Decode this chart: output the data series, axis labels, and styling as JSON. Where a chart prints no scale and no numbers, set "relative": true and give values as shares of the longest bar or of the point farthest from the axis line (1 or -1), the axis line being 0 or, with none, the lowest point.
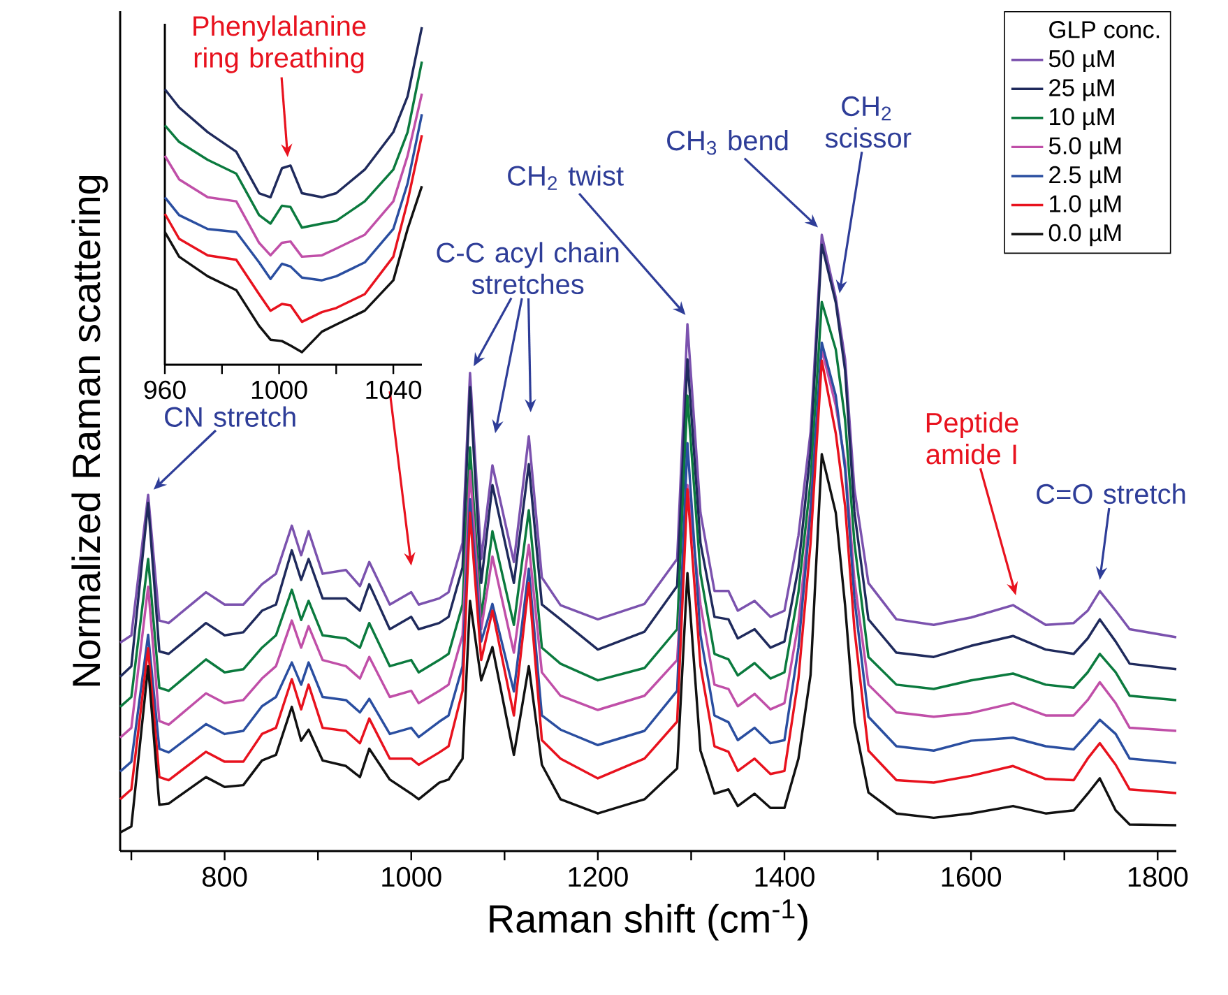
{
  "chart_data": [
    {
      "type": "line",
      "relative": true,
      "xlabel": "Raman shift (cm$^{-1}$)",
      "ylabel": "Normalized Raman scattering",
      "legend": "top right",
      "legend_title": "GLP conc.",
      "xlim": [
        688,
        1820
      ],
      "xticks": [
        {
          "value": 700,
          "label": null
        },
        800,
        {
          "value": 900,
          "label": null
        },
        1000,
        {
          "value": 1100,
          "label": null
        },
        1200,
        {
          "value": 1300,
          "label": null
        },
        1400,
        {
          "value": 1500,
          "label": null
        },
        1600,
        {
          "value": 1700,
          "label": null
        },
        1800
      ],
      "x": [
        688,
        700,
        718,
        730,
        740,
        780,
        800,
        820,
        840,
        855,
        872,
        882,
        890,
        905,
        930,
        945,
        955,
        977,
        1000,
        1008,
        1030,
        1040,
        1055,
        1063,
        1075,
        1087,
        1110,
        1126,
        1140,
        1160,
        1200,
        1250,
        1285,
        1296,
        1310,
        1325,
        1340,
        1350,
        1368,
        1385,
        1400,
        1415,
        1428,
        1440,
        1455,
        1465,
        1475,
        1490,
        1520,
        1560,
        1600,
        1645,
        1680,
        1710,
        1725,
        1738,
        1755,
        1770,
        1820
      ],
      "series": [
        {
          "name": "50 µM",
          "color": "#7b52ae",
          "values": [
            0.338,
            0.35,
            0.578,
            0.374,
            0.37,
            0.42,
            0.4,
            0.4,
            0.433,
            0.45,
            0.528,
            0.48,
            0.519,
            0.45,
            0.456,
            0.43,
            0.469,
            0.4,
            0.42,
            0.4,
            0.41,
            0.42,
            0.5,
            0.776,
            0.474,
            0.626,
            0.469,
            0.673,
            0.444,
            0.399,
            0.376,
            0.401,
            0.474,
            0.855,
            0.549,
            0.422,
            0.422,
            0.39,
            0.406,
            0.38,
            0.39,
            0.512,
            0.68,
            1.0,
            0.898,
            0.798,
            0.587,
            0.435,
            0.376,
            0.367,
            0.379,
            0.399,
            0.367,
            0.37,
            0.39,
            0.422,
            0.39,
            0.36,
            0.347
          ]
        },
        {
          "name": "25 µM",
          "color": "#1f2a5c",
          "values": [
            0.283,
            0.3,
            0.565,
            0.324,
            0.32,
            0.37,
            0.35,
            0.355,
            0.39,
            0.4,
            0.488,
            0.44,
            0.474,
            0.41,
            0.41,
            0.39,
            0.433,
            0.36,
            0.38,
            0.36,
            0.37,
            0.38,
            0.46,
            0.753,
            0.435,
            0.594,
            0.435,
            0.628,
            0.4,
            0.376,
            0.327,
            0.356,
            0.43,
            0.798,
            0.5,
            0.38,
            0.376,
            0.345,
            0.36,
            0.33,
            0.34,
            0.46,
            0.65,
            0.984,
            0.89,
            0.78,
            0.55,
            0.376,
            0.322,
            0.315,
            0.333,
            0.349,
            0.327,
            0.32,
            0.345,
            0.376,
            0.34,
            0.304,
            0.295
          ]
        },
        {
          "name": "10 µM",
          "color": "#0b7a3e",
          "values": [
            0.234,
            0.25,
            0.474,
            0.265,
            0.26,
            0.311,
            0.29,
            0.295,
            0.33,
            0.35,
            0.424,
            0.375,
            0.406,
            0.35,
            0.345,
            0.33,
            0.37,
            0.3,
            0.31,
            0.29,
            0.31,
            0.32,
            0.4,
            0.655,
            0.38,
            0.519,
            0.367,
            0.553,
            0.33,
            0.304,
            0.277,
            0.297,
            0.36,
            0.739,
            0.45,
            0.32,
            0.311,
            0.285,
            0.305,
            0.28,
            0.29,
            0.42,
            0.6,
            0.891,
            0.814,
            0.7,
            0.5,
            0.315,
            0.27,
            0.263,
            0.277,
            0.288,
            0.27,
            0.265,
            0.29,
            0.32,
            0.29,
            0.252,
            0.245
          ]
        },
        {
          "name": "5.0 µM",
          "color": "#c04fa8",
          "values": [
            0.184,
            0.2,
            0.429,
            0.211,
            0.205,
            0.256,
            0.24,
            0.245,
            0.28,
            0.3,
            0.374,
            0.33,
            0.365,
            0.31,
            0.3,
            0.28,
            0.315,
            0.25,
            0.26,
            0.24,
            0.26,
            0.27,
            0.35,
            0.617,
            0.36,
            0.478,
            0.322,
            0.497,
            0.29,
            0.252,
            0.229,
            0.252,
            0.31,
            0.594,
            0.4,
            0.27,
            0.263,
            0.235,
            0.255,
            0.23,
            0.24,
            0.37,
            0.56,
            0.814,
            0.723,
            0.63,
            0.44,
            0.27,
            0.225,
            0.218,
            0.224,
            0.24,
            0.22,
            0.22,
            0.245,
            0.274,
            0.24,
            0.2,
            0.195
          ]
        },
        {
          "name": "2.5 µM",
          "color": "#2a4ea0",
          "values": [
            0.129,
            0.145,
            0.351,
            0.166,
            0.16,
            0.206,
            0.19,
            0.195,
            0.235,
            0.25,
            0.306,
            0.27,
            0.306,
            0.25,
            0.245,
            0.225,
            0.247,
            0.19,
            0.2,
            0.185,
            0.21,
            0.22,
            0.3,
            0.571,
            0.34,
            0.401,
            0.259,
            0.458,
            0.22,
            0.197,
            0.172,
            0.195,
            0.26,
            0.662,
            0.35,
            0.22,
            0.209,
            0.18,
            0.2,
            0.175,
            0.18,
            0.33,
            0.55,
            0.825,
            0.739,
            0.62,
            0.41,
            0.218,
            0.17,
            0.163,
            0.179,
            0.184,
            0.17,
            0.165,
            0.19,
            0.213,
            0.19,
            0.15,
            0.143
          ]
        },
        {
          "name": "1.0 µM",
          "color": "#e8121e",
          "values": [
            0.084,
            0.1,
            0.329,
            0.12,
            0.115,
            0.161,
            0.145,
            0.145,
            0.19,
            0.2,
            0.279,
            0.23,
            0.27,
            0.2,
            0.195,
            0.175,
            0.215,
            0.15,
            0.15,
            0.14,
            0.16,
            0.17,
            0.26,
            0.549,
            0.31,
            0.39,
            0.22,
            0.435,
            0.18,
            0.15,
            0.118,
            0.15,
            0.21,
            0.587,
            0.3,
            0.17,
            0.161,
            0.13,
            0.15,
            0.125,
            0.13,
            0.28,
            0.5,
            0.796,
            0.678,
            0.56,
            0.36,
            0.163,
            0.115,
            0.111,
            0.122,
            0.138,
            0.117,
            0.115,
            0.15,
            0.175,
            0.14,
            0.1,
            0.094
          ]
        },
        {
          "name": "0.0 µM",
          "color": "#111111",
          "values": [
            0.03,
            0.04,
            0.3,
            0.075,
            0.077,
            0.12,
            0.104,
            0.107,
            0.147,
            0.156,
            0.234,
            0.179,
            0.197,
            0.147,
            0.138,
            0.12,
            0.166,
            0.116,
            0.093,
            0.084,
            0.111,
            0.116,
            0.15,
            0.406,
            0.277,
            0.331,
            0.156,
            0.3,
            0.14,
            0.084,
            0.061,
            0.084,
            0.134,
            0.451,
            0.163,
            0.093,
            0.1,
            0.073,
            0.093,
            0.07,
            0.07,
            0.15,
            0.286,
            0.644,
            0.549,
            0.399,
            0.209,
            0.095,
            0.061,
            0.054,
            0.061,
            0.073,
            0.061,
            0.066,
            0.093,
            0.118,
            0.066,
            0.043,
            0.042
          ]
        }
      ],
      "annotations": [
        {
          "text": "CN stretch",
          "x": 718,
          "y": 0.578
        },
        {
          "text": "C-C acyl chain stretches",
          "x": 1063,
          "y": 0.776
        },
        "CH$_{2}$ twist",
        "CH$_{3}$ bend",
        "CH$_{2}$ scissor",
        "Peptide amide I",
        "C=O stretch"
      ]
    },
    {
      "type": "line",
      "relative": true,
      "xlim": [
        960,
        1050
      ],
      "xticks": [
        960,
        {
          "value": 980,
          "label": null
        },
        1000,
        {
          "value": 1020,
          "label": null
        },
        1040
      ],
      "x": [
        960,
        965,
        975,
        985,
        993,
        997,
        1001,
        1004,
        1008,
        1015,
        1020,
        1030,
        1040,
        1045,
        1050
      ],
      "series": [
        {
          "color": "#1f2a5c",
          "values": [
            0.816,
            0.762,
            0.689,
            0.631,
            0.508,
            0.496,
            0.582,
            0.59,
            0.508,
            0.496,
            0.508,
            0.578,
            0.689,
            0.795,
            1.0
          ]
        },
        {
          "color": "#0b7a3e",
          "values": [
            0.709,
            0.66,
            0.607,
            0.566,
            0.443,
            0.418,
            0.471,
            0.467,
            0.406,
            0.418,
            0.426,
            0.484,
            0.578,
            0.689,
            0.898
          ]
        },
        {
          "color": "#c04fa8",
          "values": [
            0.619,
            0.549,
            0.496,
            0.484,
            0.361,
            0.324,
            0.361,
            0.365,
            0.32,
            0.324,
            0.344,
            0.385,
            0.484,
            0.619,
            0.803
          ]
        },
        {
          "color": "#2a4ea0",
          "values": [
            0.496,
            0.443,
            0.402,
            0.393,
            0.303,
            0.254,
            0.299,
            0.291,
            0.258,
            0.25,
            0.262,
            0.303,
            0.402,
            0.537,
            0.742
          ]
        },
        {
          "color": "#e8121e",
          "values": [
            0.447,
            0.373,
            0.324,
            0.311,
            0.209,
            0.16,
            0.18,
            0.176,
            0.127,
            0.156,
            0.168,
            0.209,
            0.32,
            0.484,
            0.68
          ]
        },
        {
          "color": "#111111",
          "values": [
            0.393,
            0.32,
            0.262,
            0.221,
            0.115,
            0.074,
            0.07,
            0.057,
            0.037,
            0.098,
            0.119,
            0.16,
            0.25,
            0.402,
            0.529
          ]
        }
      ],
      "annotations": [
        "Phenylalanine ring breathing"
      ]
    }
  ]
}
